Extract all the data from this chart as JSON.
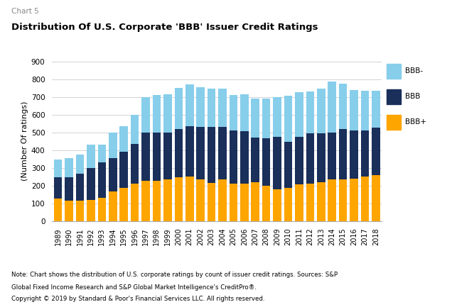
{
  "title": "Distribution Of U.S. Corporate 'BBB' Issuer Credit Ratings",
  "chart_label": "Chart 5",
  "ylabel": "(Number Of ratings)",
  "note_line1": "Note: Chart shows the distribution of U.S. corporate ratings by count of issuer credit ratings. Sources: S&P",
  "note_line2": "Global Fixed Income Research and S&P Global Market Intelligence's CreditPro®.",
  "note_line3": "Copyright © 2019 by Standard & Poor's Financial Services LLC. All rights reserved.",
  "years": [
    1989,
    1990,
    1991,
    1992,
    1993,
    1994,
    1995,
    1996,
    1997,
    1998,
    1999,
    2000,
    2001,
    2002,
    2003,
    2004,
    2005,
    2006,
    2007,
    2008,
    2009,
    2010,
    2011,
    2012,
    2013,
    2014,
    2015,
    2016,
    2017,
    2018
  ],
  "bbb_plus": [
    125,
    115,
    115,
    120,
    130,
    165,
    185,
    210,
    225,
    225,
    235,
    245,
    250,
    235,
    215,
    235,
    210,
    210,
    220,
    200,
    180,
    185,
    205,
    210,
    220,
    235,
    235,
    240,
    250,
    260
  ],
  "bbb": [
    120,
    130,
    150,
    180,
    200,
    190,
    205,
    225,
    275,
    275,
    265,
    275,
    285,
    295,
    315,
    295,
    300,
    295,
    250,
    265,
    295,
    260,
    270,
    285,
    275,
    265,
    285,
    270,
    260,
    265
  ],
  "bbb_minus": [
    100,
    110,
    110,
    130,
    100,
    145,
    145,
    165,
    200,
    210,
    215,
    230,
    235,
    225,
    215,
    215,
    200,
    210,
    220,
    225,
    225,
    260,
    250,
    235,
    250,
    285,
    255,
    230,
    225,
    210
  ],
  "color_bbb_plus": "#FFA500",
  "color_bbb": "#1A2F5A",
  "color_bbb_minus": "#87CEEB",
  "ylim": [
    0,
    900
  ],
  "yticks": [
    0,
    100,
    200,
    300,
    400,
    500,
    600,
    700,
    800,
    900
  ],
  "background_color": "#FFFFFF",
  "grid_color": "#CCCCCC"
}
